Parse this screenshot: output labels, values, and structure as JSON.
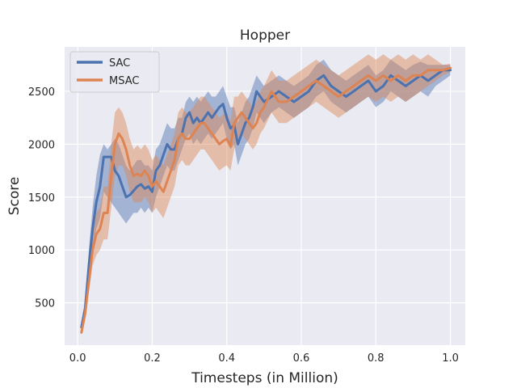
{
  "chart_data": {
    "type": "line",
    "title": "Hopper",
    "xlabel": "Timesteps (in Million)",
    "ylabel": "Score",
    "xlim": [
      -0.035,
      1.04
    ],
    "ylim": [
      100,
      2920
    ],
    "xticks": [
      0.0,
      0.2,
      0.4,
      0.6,
      0.8,
      1.0
    ],
    "xtick_labels": [
      "0.0",
      "0.2",
      "0.4",
      "0.6",
      "0.8",
      "1.0"
    ],
    "yticks": [
      500,
      1000,
      1500,
      2000,
      2500
    ],
    "ytick_labels": [
      "500",
      "1000",
      "1500",
      "2000",
      "2500"
    ],
    "grid": true,
    "legend_position": "top-left",
    "series": [
      {
        "name": "SAC",
        "color": "#4c72b0",
        "x": [
          0.01,
          0.02,
          0.03,
          0.04,
          0.05,
          0.06,
          0.07,
          0.08,
          0.09,
          0.1,
          0.11,
          0.12,
          0.13,
          0.14,
          0.15,
          0.16,
          0.17,
          0.18,
          0.19,
          0.2,
          0.21,
          0.22,
          0.23,
          0.24,
          0.25,
          0.26,
          0.27,
          0.28,
          0.29,
          0.3,
          0.31,
          0.32,
          0.33,
          0.34,
          0.35,
          0.36,
          0.37,
          0.38,
          0.39,
          0.4,
          0.41,
          0.42,
          0.43,
          0.44,
          0.45,
          0.46,
          0.47,
          0.48,
          0.49,
          0.5,
          0.52,
          0.54,
          0.56,
          0.58,
          0.6,
          0.62,
          0.64,
          0.66,
          0.68,
          0.7,
          0.72,
          0.74,
          0.76,
          0.78,
          0.8,
          0.82,
          0.84,
          0.86,
          0.88,
          0.9,
          0.92,
          0.94,
          0.96,
          0.98,
          1.0
        ],
        "y": [
          270,
          450,
          850,
          1200,
          1450,
          1600,
          1880,
          1880,
          1880,
          1750,
          1700,
          1600,
          1500,
          1520,
          1560,
          1600,
          1620,
          1580,
          1600,
          1550,
          1750,
          1800,
          1900,
          2000,
          1950,
          1950,
          2050,
          2100,
          2250,
          2300,
          2200,
          2250,
          2200,
          2250,
          2300,
          2250,
          2300,
          2350,
          2380,
          2250,
          2150,
          2180,
          2000,
          2100,
          2200,
          2250,
          2350,
          2500,
          2450,
          2400,
          2450,
          2500,
          2450,
          2400,
          2450,
          2500,
          2600,
          2650,
          2550,
          2500,
          2450,
          2500,
          2550,
          2600,
          2500,
          2550,
          2650,
          2600,
          2550,
          2600,
          2650,
          2600,
          2650,
          2700,
          2700
        ],
        "lower": [
          240,
          380,
          700,
          1000,
          1200,
          1300,
          1550,
          1500,
          1450,
          1400,
          1350,
          1300,
          1250,
          1300,
          1350,
          1350,
          1400,
          1350,
          1400,
          1350,
          1500,
          1600,
          1700,
          1800,
          1750,
          1750,
          1850,
          1950,
          2050,
          2100,
          2000,
          2050,
          2000,
          2050,
          2100,
          2050,
          2100,
          2150,
          2200,
          2050,
          1950,
          2000,
          1800,
          1900,
          2000,
          2050,
          2150,
          2300,
          2250,
          2200,
          2300,
          2350,
          2300,
          2250,
          2300,
          2350,
          2450,
          2500,
          2400,
          2350,
          2300,
          2350,
          2400,
          2450,
          2350,
          2400,
          2500,
          2450,
          2400,
          2450,
          2500,
          2450,
          2550,
          2600,
          2650
        ],
        "upper": [
          300,
          520,
          1000,
          1400,
          1700,
          1900,
          2000,
          1950,
          2000,
          2050,
          2000,
          1900,
          1800,
          1750,
          1800,
          1850,
          1850,
          1800,
          1800,
          1750,
          1950,
          2000,
          2100,
          2200,
          2150,
          2150,
          2250,
          2250,
          2400,
          2450,
          2400,
          2450,
          2400,
          2450,
          2500,
          2450,
          2450,
          2500,
          2550,
          2450,
          2350,
          2350,
          2200,
          2300,
          2400,
          2450,
          2550,
          2650,
          2600,
          2550,
          2600,
          2650,
          2600,
          2550,
          2600,
          2650,
          2750,
          2800,
          2700,
          2650,
          2600,
          2650,
          2700,
          2750,
          2650,
          2700,
          2800,
          2750,
          2700,
          2750,
          2780,
          2750,
          2750,
          2750,
          2750
        ]
      },
      {
        "name": "MSAC",
        "color": "#dd8452",
        "x": [
          0.01,
          0.02,
          0.03,
          0.04,
          0.05,
          0.06,
          0.07,
          0.08,
          0.09,
          0.1,
          0.11,
          0.12,
          0.13,
          0.14,
          0.15,
          0.16,
          0.17,
          0.18,
          0.19,
          0.2,
          0.21,
          0.22,
          0.23,
          0.24,
          0.25,
          0.26,
          0.27,
          0.28,
          0.29,
          0.3,
          0.31,
          0.32,
          0.33,
          0.34,
          0.35,
          0.36,
          0.37,
          0.38,
          0.39,
          0.4,
          0.41,
          0.42,
          0.43,
          0.44,
          0.45,
          0.46,
          0.47,
          0.48,
          0.49,
          0.5,
          0.52,
          0.54,
          0.56,
          0.58,
          0.6,
          0.62,
          0.64,
          0.66,
          0.68,
          0.7,
          0.72,
          0.74,
          0.76,
          0.78,
          0.8,
          0.82,
          0.84,
          0.86,
          0.88,
          0.9,
          0.92,
          0.94,
          0.96,
          0.98,
          1.0
        ],
        "y": [
          220,
          400,
          700,
          1000,
          1150,
          1200,
          1350,
          1350,
          1700,
          2000,
          2100,
          2050,
          1950,
          1800,
          1700,
          1720,
          1700,
          1750,
          1700,
          1600,
          1650,
          1600,
          1550,
          1650,
          1750,
          1850,
          2050,
          2100,
          2050,
          2050,
          2100,
          2150,
          2200,
          2200,
          2150,
          2100,
          2050,
          2000,
          2030,
          2050,
          1980,
          2200,
          2250,
          2300,
          2250,
          2200,
          2150,
          2200,
          2300,
          2350,
          2500,
          2400,
          2400,
          2450,
          2500,
          2550,
          2600,
          2550,
          2500,
          2450,
          2500,
          2550,
          2600,
          2650,
          2600,
          2650,
          2600,
          2650,
          2600,
          2650,
          2650,
          2700,
          2700,
          2700,
          2720
        ],
        "lower": [
          200,
          350,
          600,
          850,
          950,
          1000,
          1100,
          1100,
          1400,
          1700,
          1800,
          1800,
          1700,
          1550,
          1450,
          1450,
          1450,
          1500,
          1450,
          1350,
          1400,
          1350,
          1300,
          1400,
          1500,
          1600,
          1800,
          1850,
          1800,
          1800,
          1850,
          1900,
          1950,
          1950,
          1900,
          1850,
          1800,
          1750,
          1780,
          1800,
          1750,
          1950,
          2050,
          2100,
          2050,
          2000,
          1950,
          2000,
          2100,
          2150,
          2300,
          2200,
          2200,
          2250,
          2300,
          2350,
          2400,
          2350,
          2300,
          2250,
          2300,
          2350,
          2400,
          2450,
          2400,
          2450,
          2400,
          2450,
          2400,
          2450,
          2500,
          2550,
          2600,
          2650,
          2680
        ],
        "upper": [
          240,
          450,
          800,
          1150,
          1350,
          1400,
          1600,
          1600,
          2000,
          2300,
          2350,
          2300,
          2200,
          2050,
          1950,
          1990,
          1950,
          2000,
          1950,
          1850,
          1900,
          1850,
          1800,
          1900,
          2000,
          2100,
          2300,
          2350,
          2300,
          2300,
          2350,
          2400,
          2450,
          2450,
          2400,
          2350,
          2300,
          2250,
          2280,
          2300,
          2210,
          2450,
          2450,
          2500,
          2450,
          2400,
          2350,
          2400,
          2500,
          2550,
          2700,
          2600,
          2600,
          2650,
          2700,
          2750,
          2800,
          2750,
          2700,
          2650,
          2700,
          2750,
          2800,
          2850,
          2800,
          2850,
          2800,
          2850,
          2800,
          2850,
          2800,
          2850,
          2800,
          2750,
          2760
        ]
      }
    ]
  }
}
